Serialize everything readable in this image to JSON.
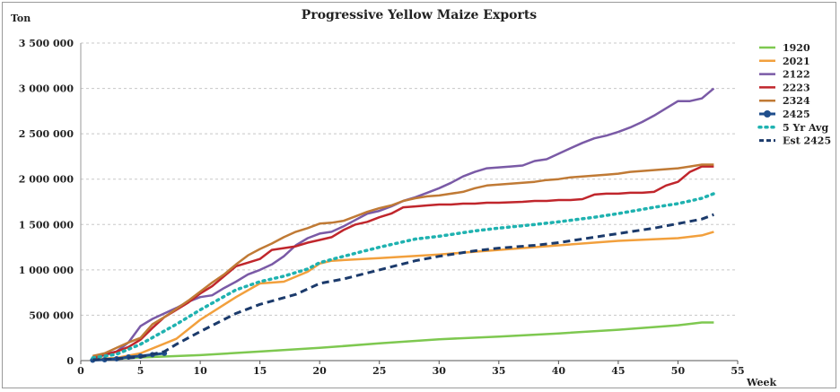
{
  "chart_data": {
    "type": "line",
    "title": "Progressive Yellow Maize Exports",
    "ylabel": "Ton",
    "xlabel": "Week",
    "xlim": [
      0,
      55
    ],
    "ylim": [
      0,
      3500000
    ],
    "xticks": [
      0,
      5,
      10,
      15,
      20,
      25,
      30,
      35,
      40,
      45,
      50,
      55
    ],
    "yticks": [
      0,
      500000,
      1000000,
      1500000,
      2000000,
      2500000,
      3000000,
      3500000
    ],
    "ytick_labels": [
      "0",
      "500 000",
      "1 000 000",
      "1 500 000",
      "2 000 000",
      "2 500 000",
      "3 000 000",
      "3 500 000"
    ],
    "grid": "horizontal dashed",
    "legend_position": "right",
    "series": [
      {
        "name": "1920",
        "color": "#7ec850",
        "style": "solid",
        "x": [
          1,
          5,
          10,
          15,
          20,
          25,
          30,
          35,
          40,
          45,
          50,
          52,
          53
        ],
        "values": [
          5000,
          35000,
          60000,
          100000,
          140000,
          190000,
          235000,
          265000,
          300000,
          340000,
          390000,
          420000,
          420000
        ]
      },
      {
        "name": "2021",
        "color": "#f2a03d",
        "style": "solid",
        "x": [
          1,
          3,
          5,
          8,
          10,
          13,
          15,
          17,
          19,
          20,
          21,
          25,
          30,
          35,
          40,
          45,
          50,
          52,
          53
        ],
        "values": [
          15000,
          30000,
          80000,
          240000,
          450000,
          700000,
          850000,
          870000,
          980000,
          1070000,
          1100000,
          1130000,
          1170000,
          1220000,
          1270000,
          1320000,
          1350000,
          1380000,
          1420000
        ]
      },
      {
        "name": "2122",
        "color": "#7a5aa6",
        "style": "solid",
        "x": [
          1,
          3,
          4,
          5,
          6,
          7,
          8,
          9,
          10,
          11,
          12,
          13,
          14,
          15,
          16,
          17,
          18,
          19,
          20,
          21,
          22,
          23,
          24,
          25,
          26,
          27,
          28,
          29,
          30,
          31,
          32,
          33,
          34,
          35,
          36,
          37,
          38,
          39,
          40,
          41,
          42,
          43,
          44,
          45,
          46,
          47,
          48,
          49,
          50,
          51,
          52,
          53
        ],
        "values": [
          40000,
          100000,
          200000,
          380000,
          460000,
          520000,
          580000,
          650000,
          700000,
          720000,
          800000,
          870000,
          950000,
          1000000,
          1060000,
          1150000,
          1270000,
          1350000,
          1400000,
          1420000,
          1480000,
          1550000,
          1620000,
          1650000,
          1700000,
          1760000,
          1800000,
          1850000,
          1900000,
          1960000,
          2030000,
          2080000,
          2120000,
          2130000,
          2140000,
          2150000,
          2200000,
          2220000,
          2280000,
          2340000,
          2400000,
          2450000,
          2480000,
          2520000,
          2570000,
          2630000,
          2700000,
          2780000,
          2860000,
          2860000,
          2890000,
          3000000
        ]
      },
      {
        "name": "2223",
        "color": "#c0262c",
        "style": "solid",
        "x": [
          1,
          2,
          3,
          4,
          5,
          6,
          7,
          8,
          9,
          10,
          11,
          12,
          13,
          14,
          15,
          16,
          17,
          18,
          19,
          20,
          21,
          22,
          23,
          24,
          25,
          26,
          27,
          28,
          29,
          30,
          31,
          32,
          33,
          34,
          35,
          36,
          37,
          38,
          39,
          40,
          41,
          42,
          43,
          44,
          45,
          46,
          47,
          48,
          49,
          50,
          51,
          52,
          53
        ],
        "values": [
          30000,
          60000,
          100000,
          150000,
          230000,
          360000,
          480000,
          560000,
          640000,
          740000,
          820000,
          930000,
          1040000,
          1080000,
          1120000,
          1220000,
          1240000,
          1260000,
          1300000,
          1330000,
          1360000,
          1440000,
          1500000,
          1530000,
          1580000,
          1620000,
          1690000,
          1700000,
          1710000,
          1720000,
          1720000,
          1730000,
          1730000,
          1740000,
          1740000,
          1745000,
          1750000,
          1760000,
          1760000,
          1770000,
          1770000,
          1780000,
          1830000,
          1840000,
          1840000,
          1850000,
          1850000,
          1860000,
          1930000,
          1970000,
          2080000,
          2140000,
          2140000
        ]
      },
      {
        "name": "2324",
        "color": "#c07a35",
        "style": "solid",
        "x": [
          1,
          2,
          3,
          4,
          5,
          6,
          7,
          8,
          9,
          10,
          11,
          12,
          13,
          14,
          15,
          16,
          17,
          18,
          19,
          20,
          21,
          22,
          23,
          24,
          25,
          26,
          27,
          28,
          29,
          30,
          31,
          32,
          33,
          34,
          35,
          36,
          37,
          38,
          39,
          40,
          41,
          42,
          43,
          44,
          45,
          46,
          47,
          48,
          49,
          50,
          51,
          52,
          53
        ],
        "values": [
          50000,
          80000,
          140000,
          200000,
          250000,
          400000,
          480000,
          570000,
          660000,
          760000,
          860000,
          950000,
          1060000,
          1160000,
          1230000,
          1290000,
          1360000,
          1420000,
          1460000,
          1510000,
          1520000,
          1540000,
          1590000,
          1640000,
          1680000,
          1710000,
          1760000,
          1790000,
          1810000,
          1820000,
          1840000,
          1860000,
          1900000,
          1930000,
          1940000,
          1950000,
          1960000,
          1970000,
          1990000,
          2000000,
          2020000,
          2030000,
          2040000,
          2050000,
          2060000,
          2080000,
          2090000,
          2100000,
          2110000,
          2120000,
          2140000,
          2160000,
          2160000
        ]
      },
      {
        "name": "2425",
        "color": "#1f4e8c",
        "style": "solid-marker",
        "x": [
          1,
          2,
          3,
          4,
          5,
          6,
          7
        ],
        "values": [
          5000,
          10000,
          20000,
          40000,
          50000,
          65000,
          80000
        ]
      },
      {
        "name": "5 Yr Avg",
        "color": "#1fb2b0",
        "style": "dotted",
        "x": [
          1,
          3,
          5,
          8,
          10,
          13,
          15,
          17,
          19,
          20,
          22,
          25,
          28,
          30,
          33,
          35,
          38,
          40,
          43,
          45,
          48,
          50,
          52,
          53
        ],
        "values": [
          30000,
          70000,
          180000,
          400000,
          560000,
          780000,
          870000,
          930000,
          1010000,
          1080000,
          1150000,
          1250000,
          1340000,
          1370000,
          1430000,
          1460000,
          1500000,
          1530000,
          1580000,
          1620000,
          1690000,
          1730000,
          1790000,
          1840000
        ]
      },
      {
        "name": "Est 2425",
        "color": "#1b3a6b",
        "style": "dashed",
        "x": [
          1,
          3,
          5,
          7,
          8,
          10,
          13,
          15,
          18,
          20,
          22,
          25,
          28,
          30,
          33,
          35,
          38,
          40,
          43,
          45,
          48,
          50,
          52,
          53
        ],
        "values": [
          10000,
          20000,
          40000,
          100000,
          180000,
          320000,
          520000,
          620000,
          730000,
          850000,
          900000,
          1000000,
          1100000,
          1150000,
          1210000,
          1240000,
          1270000,
          1300000,
          1360000,
          1400000,
          1460000,
          1510000,
          1560000,
          1610000
        ]
      }
    ]
  }
}
